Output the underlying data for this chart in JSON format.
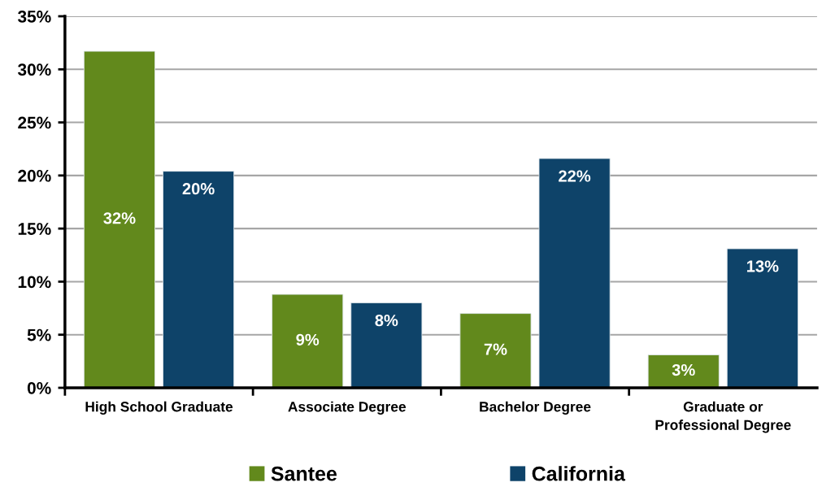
{
  "chart_data": {
    "type": "bar",
    "categories": [
      "High School Graduate",
      "Associate Degree",
      "Bachelor Degree",
      "Graduate or\nProfessional Degree"
    ],
    "series": [
      {
        "name": "Santee",
        "color": "#62891c",
        "values": [
          31.7,
          8.8,
          7.0,
          3.1
        ],
        "value_labels": [
          "32%",
          "9%",
          "7%",
          "3%"
        ]
      },
      {
        "name": "California",
        "color": "#0e4369",
        "values": [
          20.4,
          8.0,
          21.6,
          13.1
        ],
        "value_labels": [
          "20%",
          "8%",
          "22%",
          "13%"
        ]
      }
    ],
    "ylim": [
      0,
      35
    ],
    "yticks": [
      {
        "value": 0,
        "label": "0%"
      },
      {
        "value": 5,
        "label": "5%"
      },
      {
        "value": 10,
        "label": "10%"
      },
      {
        "value": 15,
        "label": "15%"
      },
      {
        "value": 20,
        "label": "20%"
      },
      {
        "value": 25,
        "label": "25%"
      },
      {
        "value": 30,
        "label": "30%"
      },
      {
        "value": 35,
        "label": "35%"
      }
    ],
    "grid": "y",
    "legend": "bottom"
  }
}
